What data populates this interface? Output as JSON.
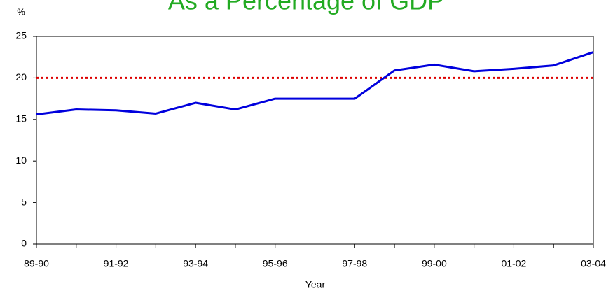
{
  "chart_data": {
    "type": "line",
    "title": "As a Percentage of GDP",
    "title_color": "#22aa22",
    "y_unit_label": "%",
    "x_label": "Year",
    "categories": [
      "89-90",
      null,
      "91-92",
      null,
      "93-94",
      null,
      "95-96",
      null,
      "97-98",
      null,
      "99-00",
      null,
      "01-02",
      null,
      "03-04"
    ],
    "series": [
      {
        "color": "#0000dd",
        "values": [
          15.6,
          16.2,
          16.1,
          15.7,
          17.0,
          16.2,
          17.5,
          17.5,
          17.5,
          20.9,
          21.6,
          20.8,
          21.1,
          21.5,
          23.1
        ]
      }
    ],
    "reference_line": {
      "value": 20,
      "color": "#dd0000"
    },
    "ylim": [
      0,
      25
    ],
    "yticks": [
      0,
      5,
      10,
      15,
      20,
      25
    ],
    "grid": false
  }
}
